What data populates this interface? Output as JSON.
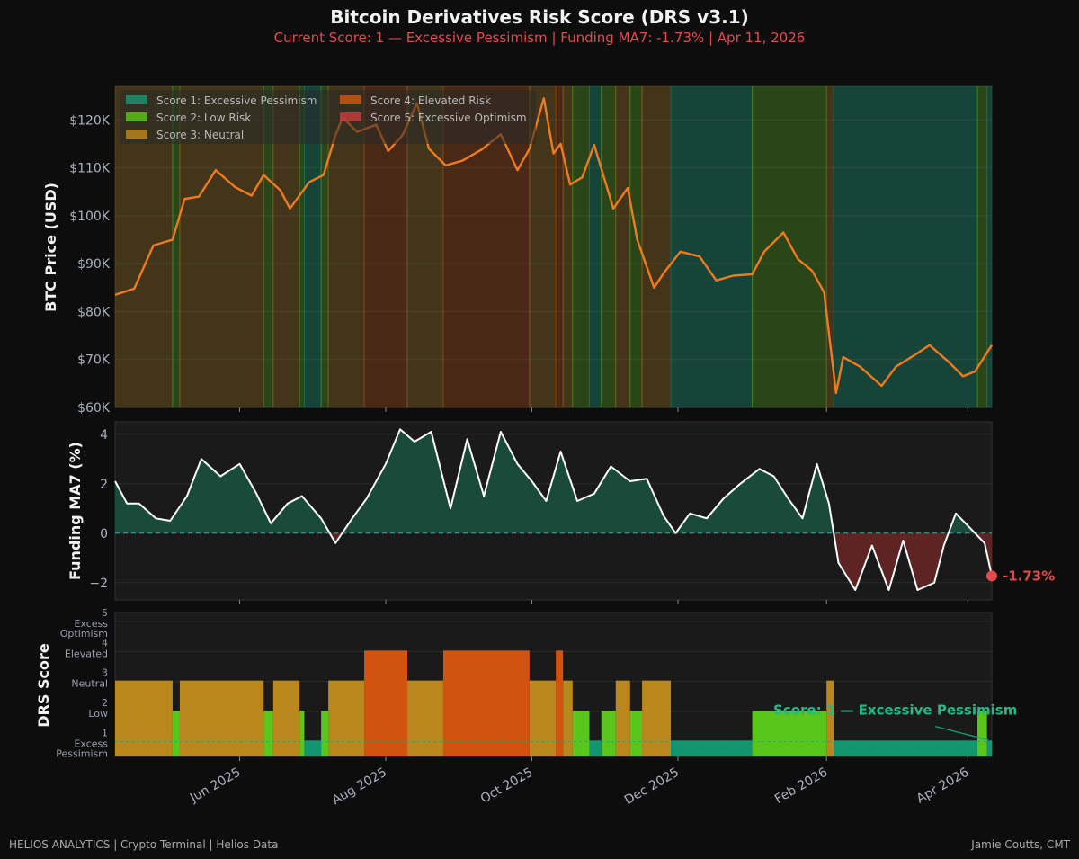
{
  "title": "Bitcoin Derivatives Risk Score (DRS v3.1)",
  "subtitle": "Current Score: 1 — Excessive Pessimism  |  Funding MA7: -1.73%  |  Apr 11, 2026",
  "footer_left": "HELIOS ANALYTICS  |  Crypto Terminal  |  Helios Data",
  "footer_right": "Jamie Coutts, CMT",
  "colors": {
    "bg": "#0d0d0d",
    "panel": "#1a1a1a",
    "price_line": "#f07a1e",
    "funding_line": "#ffffff",
    "funding_pos": "#1a4a3a",
    "funding_neg": "#5e2323",
    "score1": "#14a07a",
    "score2": "#5fd41a",
    "score3": "#c8901e",
    "score4": "#e2580e",
    "score5": "#d24040",
    "current": "#e24a4a"
  },
  "chart_data": {
    "type": "line",
    "x_range": [
      "2025-04-10",
      "2026-04-11"
    ],
    "x_ticks": [
      "Jun 2025",
      "Aug 2025",
      "Oct 2025",
      "Dec 2025",
      "Feb 2026",
      "Apr 2026"
    ],
    "x_tick_dates": [
      "2025-06-01",
      "2025-08-01",
      "2025-10-01",
      "2025-12-01",
      "2026-02-01",
      "2026-04-01"
    ],
    "legend": [
      {
        "score": 1,
        "label": "Score 1: Excessive Pessimism"
      },
      {
        "score": 2,
        "label": "Score 2: Low Risk"
      },
      {
        "score": 3,
        "label": "Score 3: Neutral"
      },
      {
        "score": 4,
        "label": "Score 4: Elevated Risk"
      },
      {
        "score": 5,
        "label": "Score 5: Excessive Optimism"
      }
    ],
    "price_panel": {
      "ylabel": "BTC Price (USD)",
      "ylim": [
        60000,
        127000
      ],
      "y_ticks": [
        60000,
        70000,
        80000,
        90000,
        100000,
        110000,
        120000
      ],
      "y_tick_labels": [
        "$60K",
        "$70K",
        "$80K",
        "$90K",
        "$100K",
        "$110K",
        "$120K"
      ],
      "series": [
        [
          "2025-04-10",
          83500
        ],
        [
          "2025-04-18",
          84800
        ],
        [
          "2025-04-26",
          93800
        ],
        [
          "2025-05-04",
          95000
        ],
        [
          "2025-05-09",
          103500
        ],
        [
          "2025-05-15",
          104000
        ],
        [
          "2025-05-22",
          109500
        ],
        [
          "2025-05-30",
          106000
        ],
        [
          "2025-06-06",
          104200
        ],
        [
          "2025-06-11",
          108500
        ],
        [
          "2025-06-18",
          105300
        ],
        [
          "2025-06-22",
          101500
        ],
        [
          "2025-06-30",
          107000
        ],
        [
          "2025-07-06",
          108500
        ],
        [
          "2025-07-11",
          116800
        ],
        [
          "2025-07-14",
          120500
        ],
        [
          "2025-07-20",
          117500
        ],
        [
          "2025-07-28",
          119000
        ],
        [
          "2025-08-02",
          113500
        ],
        [
          "2025-08-08",
          116800
        ],
        [
          "2025-08-14",
          123500
        ],
        [
          "2025-08-19",
          114000
        ],
        [
          "2025-08-26",
          110500
        ],
        [
          "2025-09-02",
          111500
        ],
        [
          "2025-09-10",
          113800
        ],
        [
          "2025-09-18",
          117000
        ],
        [
          "2025-09-25",
          109500
        ],
        [
          "2025-09-30",
          114000
        ],
        [
          "2025-10-06",
          124500
        ],
        [
          "2025-10-10",
          113000
        ],
        [
          "2025-10-13",
          115000
        ],
        [
          "2025-10-17",
          106500
        ],
        [
          "2025-10-22",
          108000
        ],
        [
          "2025-10-27",
          114800
        ],
        [
          "2025-11-04",
          101500
        ],
        [
          "2025-11-10",
          105800
        ],
        [
          "2025-11-14",
          95000
        ],
        [
          "2025-11-21",
          85000
        ],
        [
          "2025-11-25",
          88000
        ],
        [
          "2025-12-02",
          92500
        ],
        [
          "2025-12-10",
          91500
        ],
        [
          "2025-12-17",
          86500
        ],
        [
          "2025-12-24",
          87500
        ],
        [
          "2026-01-01",
          87800
        ],
        [
          "2026-01-06",
          92500
        ],
        [
          "2026-01-14",
          96500
        ],
        [
          "2026-01-20",
          91000
        ],
        [
          "2026-01-26",
          88500
        ],
        [
          "2026-01-31",
          84000
        ],
        [
          "2026-02-05",
          63000
        ],
        [
          "2026-02-08",
          70500
        ],
        [
          "2026-02-15",
          68500
        ],
        [
          "2026-02-24",
          64500
        ],
        [
          "2026-03-02",
          68500
        ],
        [
          "2026-03-10",
          71000
        ],
        [
          "2026-03-16",
          73000
        ],
        [
          "2026-03-24",
          69500
        ],
        [
          "2026-03-30",
          66500
        ],
        [
          "2026-04-04",
          67500
        ],
        [
          "2026-04-11",
          73000
        ]
      ]
    },
    "funding_panel": {
      "ylabel": "Funding MA7 (%)",
      "ylim": [
        -2.7,
        4.5
      ],
      "y_ticks": [
        -2,
        0,
        2,
        4
      ],
      "y_tick_labels": [
        "−2",
        "0",
        "2",
        "4"
      ],
      "current_value": -1.73,
      "current_label": "-1.73%",
      "series": [
        [
          "2025-04-10",
          2.1
        ],
        [
          "2025-04-15",
          1.2
        ],
        [
          "2025-04-20",
          1.2
        ],
        [
          "2025-04-27",
          0.6
        ],
        [
          "2025-05-03",
          0.5
        ],
        [
          "2025-05-10",
          1.5
        ],
        [
          "2025-05-16",
          3.0
        ],
        [
          "2025-05-24",
          2.3
        ],
        [
          "2025-06-01",
          2.8
        ],
        [
          "2025-06-08",
          1.6
        ],
        [
          "2025-06-14",
          0.4
        ],
        [
          "2025-06-21",
          1.2
        ],
        [
          "2025-06-27",
          1.5
        ],
        [
          "2025-07-05",
          0.6
        ],
        [
          "2025-07-11",
          -0.4
        ],
        [
          "2025-07-18",
          0.6
        ],
        [
          "2025-07-24",
          1.4
        ],
        [
          "2025-08-01",
          2.8
        ],
        [
          "2025-08-07",
          4.2
        ],
        [
          "2025-08-13",
          3.7
        ],
        [
          "2025-08-20",
          4.1
        ],
        [
          "2025-08-28",
          1.0
        ],
        [
          "2025-09-04",
          3.8
        ],
        [
          "2025-09-11",
          1.5
        ],
        [
          "2025-09-18",
          4.1
        ],
        [
          "2025-09-25",
          2.8
        ],
        [
          "2025-10-01",
          2.1
        ],
        [
          "2025-10-07",
          1.3
        ],
        [
          "2025-10-13",
          3.3
        ],
        [
          "2025-10-20",
          1.3
        ],
        [
          "2025-10-27",
          1.6
        ],
        [
          "2025-11-03",
          2.7
        ],
        [
          "2025-11-11",
          2.1
        ],
        [
          "2025-11-18",
          2.2
        ],
        [
          "2025-11-25",
          0.7
        ],
        [
          "2025-11-30",
          0.0
        ],
        [
          "2025-12-06",
          0.8
        ],
        [
          "2025-12-13",
          0.6
        ],
        [
          "2025-12-20",
          1.4
        ],
        [
          "2025-12-27",
          2.0
        ],
        [
          "2026-01-04",
          2.6
        ],
        [
          "2026-01-10",
          2.3
        ],
        [
          "2026-01-16",
          1.4
        ],
        [
          "2026-01-22",
          0.6
        ],
        [
          "2026-01-28",
          2.8
        ],
        [
          "2026-02-02",
          1.2
        ],
        [
          "2026-02-06",
          -1.2
        ],
        [
          "2026-02-13",
          -2.3
        ],
        [
          "2026-02-20",
          -0.5
        ],
        [
          "2026-02-27",
          -2.3
        ],
        [
          "2026-03-05",
          -0.3
        ],
        [
          "2026-03-11",
          -2.3
        ],
        [
          "2026-03-18",
          -2.0
        ],
        [
          "2026-03-22",
          -0.5
        ],
        [
          "2026-03-27",
          0.8
        ],
        [
          "2026-04-01",
          0.3
        ],
        [
          "2026-04-04",
          0.0
        ],
        [
          "2026-04-08",
          -0.4
        ],
        [
          "2026-04-11",
          -1.73
        ]
      ]
    },
    "score_panel": {
      "ylabel": "DRS Score",
      "ylim": [
        0.5,
        5.3
      ],
      "y_ticks": [
        {
          "value": 5,
          "label": "5",
          "desc": "Excess\nOptimism"
        },
        {
          "value": 4,
          "label": "4",
          "desc": "Elevated"
        },
        {
          "value": 3,
          "label": "3",
          "desc": "Neutral"
        },
        {
          "value": 2,
          "label": "2",
          "desc": "Low"
        },
        {
          "value": 1,
          "label": "1",
          "desc": "Excess\nPessimism"
        }
      ],
      "annotation": "Score: 1 — Excessive Pessimism",
      "segments": [
        [
          "2025-04-10",
          "2025-05-04",
          3
        ],
        [
          "2025-05-04",
          "2025-05-07",
          2
        ],
        [
          "2025-05-07",
          "2025-06-11",
          3
        ],
        [
          "2025-06-11",
          "2025-06-15",
          2
        ],
        [
          "2025-06-15",
          "2025-06-26",
          3
        ],
        [
          "2025-06-26",
          "2025-06-28",
          2
        ],
        [
          "2025-06-28",
          "2025-07-05",
          1
        ],
        [
          "2025-07-05",
          "2025-07-08",
          2
        ],
        [
          "2025-07-08",
          "2025-07-23",
          3
        ],
        [
          "2025-07-23",
          "2025-08-10",
          4
        ],
        [
          "2025-08-10",
          "2025-08-25",
          3
        ],
        [
          "2025-08-25",
          "2025-09-30",
          4
        ],
        [
          "2025-09-30",
          "2025-10-11",
          3
        ],
        [
          "2025-10-11",
          "2025-10-14",
          4
        ],
        [
          "2025-10-14",
          "2025-10-18",
          3
        ],
        [
          "2025-10-18",
          "2025-10-25",
          2
        ],
        [
          "2025-10-25",
          "2025-10-30",
          1
        ],
        [
          "2025-10-30",
          "2025-11-05",
          2
        ],
        [
          "2025-11-05",
          "2025-11-11",
          3
        ],
        [
          "2025-11-11",
          "2025-11-16",
          2
        ],
        [
          "2025-11-16",
          "2025-11-28",
          3
        ],
        [
          "2025-11-28",
          "2026-01-01",
          1
        ],
        [
          "2026-01-01",
          "2026-02-01",
          2
        ],
        [
          "2026-02-01",
          "2026-02-04",
          3
        ],
        [
          "2026-02-04",
          "2026-04-05",
          1
        ],
        [
          "2026-04-05",
          "2026-04-09",
          2
        ],
        [
          "2026-04-09",
          "2026-04-11",
          1
        ]
      ]
    }
  }
}
